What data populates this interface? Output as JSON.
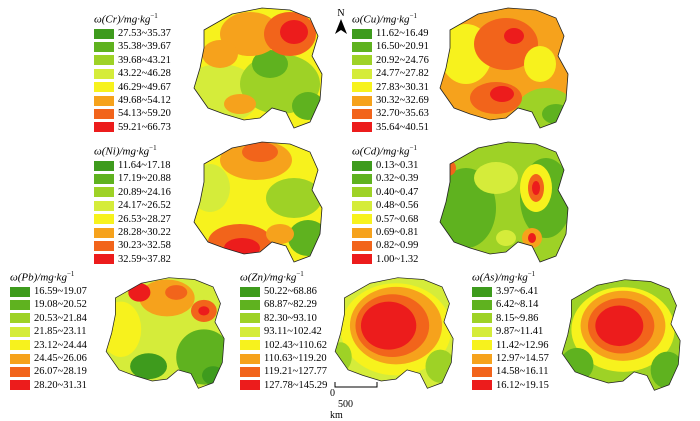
{
  "palette": [
    "#3e9b1d",
    "#5fb21f",
    "#9ed226",
    "#d5ec3a",
    "#f7f21d",
    "#f6a21c",
    "#f2641b",
    "#ec1c1c"
  ],
  "north_label": "N",
  "scale": {
    "zero": "0",
    "label": "500 km"
  },
  "panels": [
    {
      "id": "cr",
      "element": "Cr",
      "title_prefix": "ω(Cr)/mg·kg",
      "title_sup": "−1",
      "ranges": [
        "27.53~35.37",
        "35.38~39.67",
        "39.68~43.21",
        "43.22~46.28",
        "46.29~49.67",
        "49.68~54.12",
        "54.13~59.20",
        "59.21~66.73"
      ]
    },
    {
      "id": "cu",
      "element": "Cu",
      "title_prefix": "ω(Cu)/mg·kg",
      "title_sup": "−1",
      "ranges": [
        "11.62~16.49",
        "16.50~20.91",
        "20.92~24.76",
        "24.77~27.82",
        "27.83~30.31",
        "30.32~32.69",
        "32.70~35.63",
        "35.64~40.51"
      ]
    },
    {
      "id": "ni",
      "element": "Ni",
      "title_prefix": "ω(Ni)/mg·kg",
      "title_sup": "−1",
      "ranges": [
        "11.64~17.18",
        "17.19~20.88",
        "20.89~24.16",
        "24.17~26.52",
        "26.53~28.27",
        "28.28~30.22",
        "30.23~32.58",
        "32.59~37.82"
      ]
    },
    {
      "id": "cd",
      "element": "Cd",
      "title_prefix": "ω(Cd)/mg·kg",
      "title_sup": "−1",
      "ranges": [
        "0.13~0.31",
        "0.32~0.39",
        "0.40~0.47",
        "0.48~0.56",
        "0.57~0.68",
        "0.69~0.81",
        "0.82~0.99",
        "1.00~1.32"
      ]
    },
    {
      "id": "pb",
      "element": "Pb",
      "title_prefix": "ω(Pb)/mg·kg",
      "title_sup": "−1",
      "ranges": [
        "16.59~19.07",
        "19.08~20.52",
        "20.53~21.84",
        "21.85~23.11",
        "23.12~24.44",
        "24.45~26.06",
        "26.07~28.19",
        "28.20~31.31"
      ]
    },
    {
      "id": "zn",
      "element": "Zn",
      "title_prefix": "ω(Zn)/mg·kg",
      "title_sup": "−1",
      "ranges": [
        "50.22~68.86",
        "68.87~82.29",
        "82.30~93.10",
        "93.11~102.42",
        "102.43~110.62",
        "110.63~119.20",
        "119.21~127.77",
        "127.78~145.29"
      ]
    },
    {
      "id": "as",
      "element": "As",
      "title_prefix": "ω(As)/mg·kg",
      "title_sup": "−1",
      "ranges": [
        "3.97~6.41",
        "6.42~8.14",
        "8.15~9.86",
        "9.87~11.41",
        "11.42~12.96",
        "12.97~14.57",
        "14.58~16.11",
        "16.12~19.15"
      ]
    }
  ]
}
